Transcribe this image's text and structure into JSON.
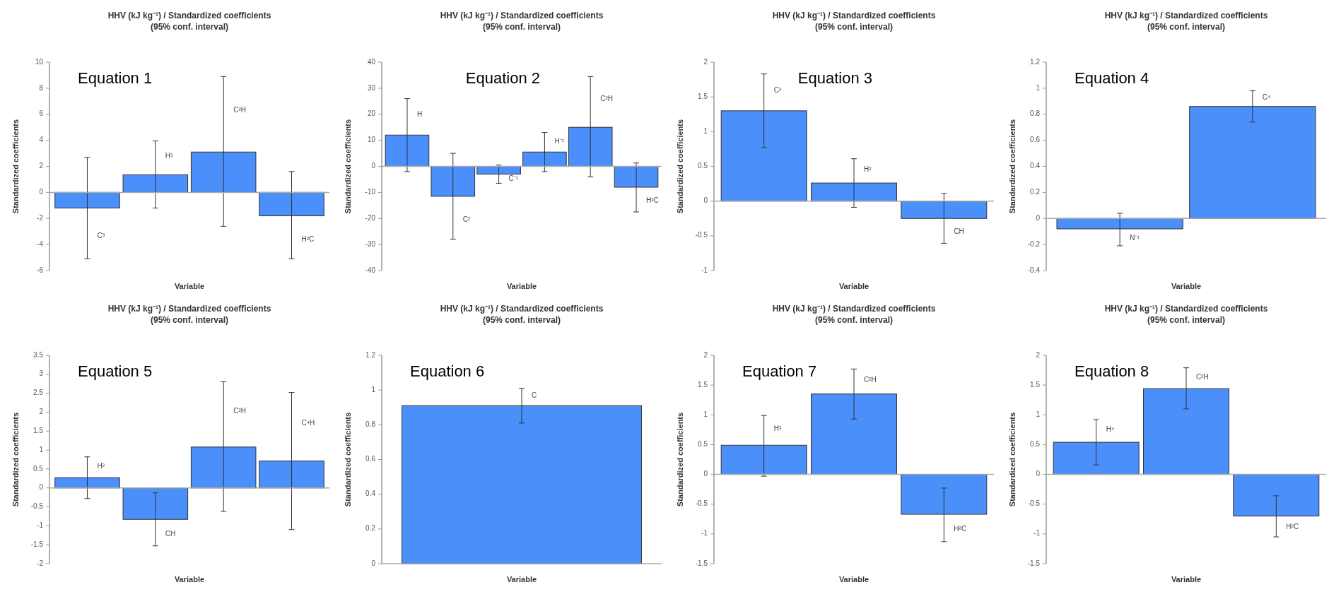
{
  "chart_data": [
    {
      "type": "bar",
      "title": "HHV (kJ kg⁻¹) / Standardized coefficients",
      "subtitle": "(95% conf. interval)",
      "xlabel": "Variable",
      "ylabel": "Standardized coefficients",
      "annotations": [
        "Equation 1"
      ],
      "categories": [
        "C³",
        "H³",
        "C²H",
        "H²C"
      ],
      "values": [
        -1.2,
        1.35,
        3.1,
        -1.8
      ],
      "errors": [
        [
          -5.1,
          2.7
        ],
        [
          -1.2,
          3.95
        ],
        [
          -2.6,
          8.9
        ],
        [
          -5.1,
          1.6
        ]
      ],
      "color": "#4a8ffa",
      "ylim": [
        -6,
        10
      ],
      "yticks": [
        -6,
        -4,
        -2,
        0,
        2,
        4,
        6,
        8,
        10
      ]
    },
    {
      "type": "bar",
      "title": "HHV (kJ kg⁻¹) / Standardized coefficients",
      "subtitle": "(95% conf. interval)",
      "xlabel": "Variable",
      "ylabel": "Standardized coefficients",
      "annotations": [
        "Equation 2"
      ],
      "categories": [
        "H",
        "C²",
        "C⁻¹",
        "H⁻¹",
        "C²H",
        "H²C"
      ],
      "values": [
        12,
        -11.5,
        -3,
        5.5,
        15,
        -8
      ],
      "errors": [
        [
          -2,
          26
        ],
        [
          -28,
          5
        ],
        [
          -6.5,
          0.5
        ],
        [
          -2,
          13
        ],
        [
          -4,
          34.5
        ],
        [
          -17.5,
          1.3
        ]
      ],
      "color": "#4a8ffa",
      "ylim": [
        -40,
        40
      ],
      "yticks": [
        -40,
        -30,
        -20,
        -10,
        0,
        10,
        20,
        30,
        40
      ]
    },
    {
      "type": "bar",
      "title": "HHV (kJ kg⁻¹) / Standardized coefficients",
      "subtitle": "(95% conf. interval)",
      "xlabel": "Variable",
      "ylabel": "Standardized coefficients",
      "annotations": [
        "Equation 3"
      ],
      "categories": [
        "C²",
        "H²",
        "CH"
      ],
      "values": [
        1.3,
        0.26,
        -0.25
      ],
      "errors": [
        [
          0.77,
          1.83
        ],
        [
          -0.09,
          0.61
        ],
        [
          -0.61,
          0.11
        ]
      ],
      "color": "#4a8ffa",
      "ylim": [
        -1,
        2
      ],
      "yticks": [
        -1,
        -0.5,
        0,
        0.5,
        1,
        1.5,
        2
      ]
    },
    {
      "type": "bar",
      "title": "HHV (kJ kg⁻¹) / Standardized coefficients",
      "subtitle": "(95% conf. interval)",
      "xlabel": "Variable",
      "ylabel": "Standardized coefficients",
      "annotations": [
        "Equation 4"
      ],
      "categories": [
        "N⁻¹",
        "C⁴"
      ],
      "values": [
        -0.08,
        0.86
      ],
      "errors": [
        [
          -0.21,
          0.04
        ],
        [
          0.74,
          0.98
        ]
      ],
      "color": "#4a8ffa",
      "ylim": [
        -0.4,
        1.2
      ],
      "yticks": [
        -0.4,
        -0.2,
        0,
        0.2,
        0.4,
        0.6,
        0.8,
        1,
        1.2
      ]
    },
    {
      "type": "bar",
      "title": "HHV (kJ kg⁻¹) / Standardized coefficients",
      "subtitle": "(95% conf. interval)",
      "xlabel": "Variable",
      "ylabel": "Standardized coefficients",
      "annotations": [
        "Equation 5"
      ],
      "categories": [
        "H²",
        "CH",
        "C²H",
        "C⁴H"
      ],
      "values": [
        0.27,
        -0.83,
        1.08,
        0.71
      ],
      "errors": [
        [
          -0.28,
          0.82
        ],
        [
          -1.53,
          -0.13
        ],
        [
          -0.62,
          2.8
        ],
        [
          -1.1,
          2.52
        ]
      ],
      "color": "#4a8ffa",
      "ylim": [
        -2,
        3.5
      ],
      "yticks": [
        -2,
        -1.5,
        -1,
        -0.5,
        0,
        0.5,
        1,
        1.5,
        2,
        2.5,
        3,
        3.5
      ]
    },
    {
      "type": "bar",
      "title": "HHV (kJ kg⁻¹) / Standardized coefficients",
      "subtitle": "(95% conf. interval)",
      "xlabel": "Variable",
      "ylabel": "Standardized coefficients",
      "annotations": [
        "Equation 6"
      ],
      "categories": [
        "C"
      ],
      "values": [
        0.91
      ],
      "errors": [
        [
          0.81,
          1.01
        ]
      ],
      "color": "#4a8ffa",
      "ylim": [
        0,
        1.2
      ],
      "yticks": [
        0,
        0.2,
        0.4,
        0.6,
        0.8,
        1,
        1.2
      ]
    },
    {
      "type": "bar",
      "title": "HHV (kJ kg⁻¹) / Standardized coefficients",
      "subtitle": "(95% conf. interval)",
      "xlabel": "Variable",
      "ylabel": "Standardized coefficients",
      "annotations": [
        "Equation 7"
      ],
      "categories": [
        "H³",
        "C²H",
        "H²C"
      ],
      "values": [
        0.49,
        1.35,
        -0.67
      ],
      "errors": [
        [
          -0.03,
          0.99
        ],
        [
          0.93,
          1.77
        ],
        [
          -1.13,
          -0.23
        ]
      ],
      "color": "#4a8ffa",
      "ylim": [
        -1.5,
        2
      ],
      "yticks": [
        -1.5,
        -1,
        -0.5,
        0,
        0.5,
        1,
        1.5,
        2
      ]
    },
    {
      "type": "bar",
      "title": "HHV (kJ kg⁻¹) / Standardized coefficients",
      "subtitle": "(95% conf. interval)",
      "xlabel": "Variable",
      "ylabel": "Standardized coefficients",
      "annotations": [
        "Equation 8"
      ],
      "categories": [
        "H⁴",
        "C²H",
        "H²C"
      ],
      "values": [
        0.54,
        1.44,
        -0.7
      ],
      "errors": [
        [
          0.16,
          0.92
        ],
        [
          1.1,
          1.79
        ],
        [
          -1.05,
          -0.36
        ]
      ],
      "color": "#4a8ffa",
      "ylim": [
        -1.5,
        2
      ],
      "yticks": [
        -1.5,
        -1,
        -0.5,
        0,
        0.5,
        1,
        1.5,
        2
      ]
    }
  ]
}
